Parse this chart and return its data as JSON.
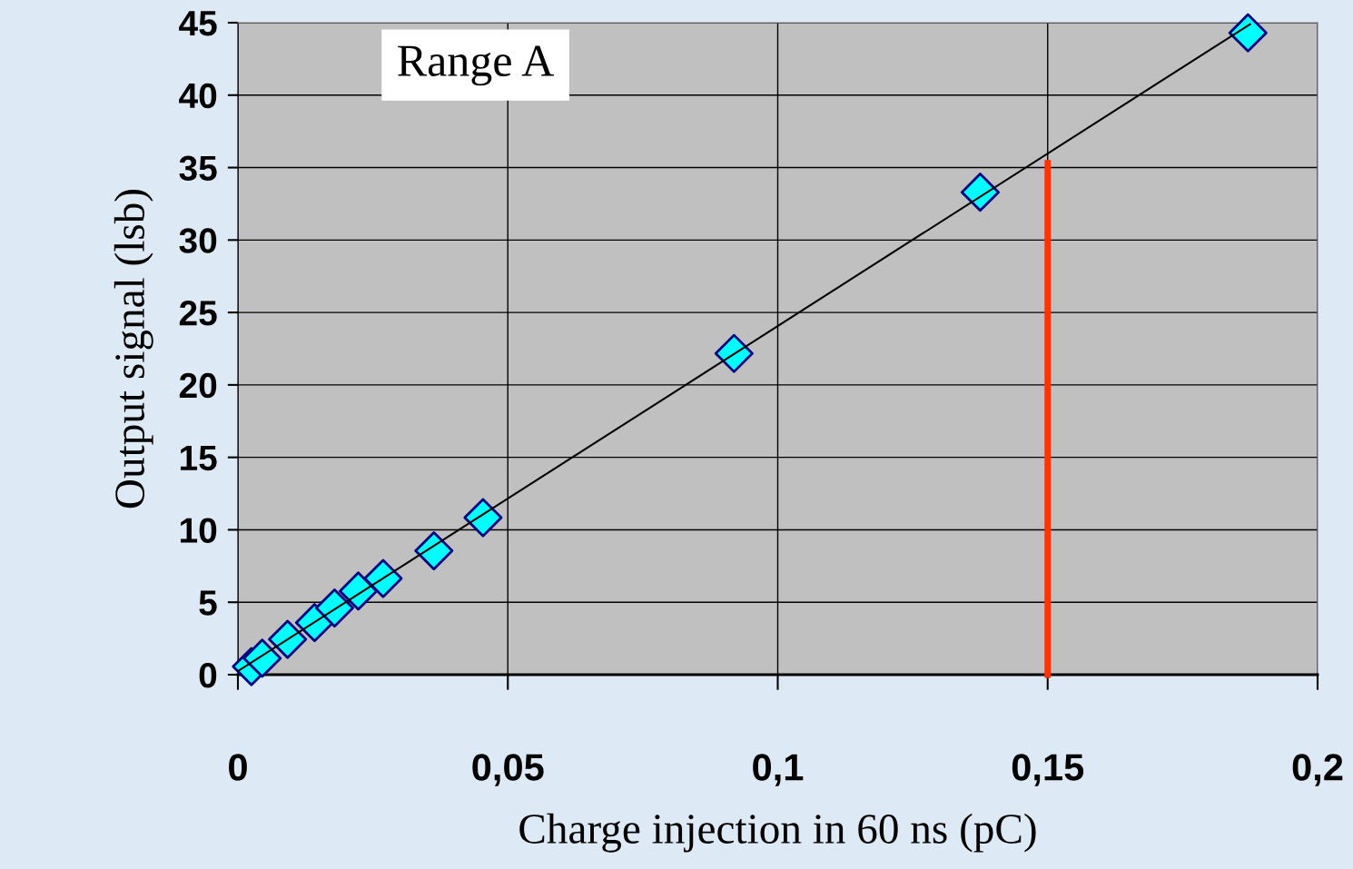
{
  "chart_data": {
    "type": "scatter",
    "xlabel": "Charge injection in 60 ns (pC)",
    "ylabel": "Output signal (lsb)",
    "annotations": [
      "Range A"
    ],
    "series": [
      {
        "color": "#00ffff",
        "marker": "diamond",
        "x": [
          0.0025,
          0.0045,
          0.0092,
          0.0142,
          0.0179,
          0.0223,
          0.0269,
          0.0363,
          0.0454,
          0.0919,
          0.1375,
          0.1871
        ],
        "values": [
          0.56,
          1.13,
          2.44,
          3.59,
          4.6,
          5.77,
          6.64,
          8.55,
          10.84,
          22.17,
          33.3,
          44.3
        ]
      },
      {
        "type": "line",
        "color": "#000000",
        "marker": "none",
        "x": [
          0,
          0.1875
        ],
        "values": [
          0.25,
          44.9
        ]
      },
      {
        "type": "line",
        "color": "#ff3300",
        "marker": "none",
        "x": [
          0.15,
          0.15
        ],
        "values": [
          0,
          35.3
        ]
      }
    ],
    "xlim": [
      0,
      0.2
    ],
    "ylim": [
      0,
      45
    ],
    "xticks": [
      0,
      {
        "value": 0.05,
        "label": "0,05"
      },
      {
        "value": 0.1,
        "label": "0,1"
      },
      {
        "value": 0.15,
        "label": "0,15"
      },
      {
        "value": 0.2,
        "label": "0,2"
      }
    ],
    "yticks": [
      0,
      5,
      10,
      15,
      20,
      25,
      30,
      35,
      40,
      45
    ],
    "grid": true,
    "legend": false
  }
}
